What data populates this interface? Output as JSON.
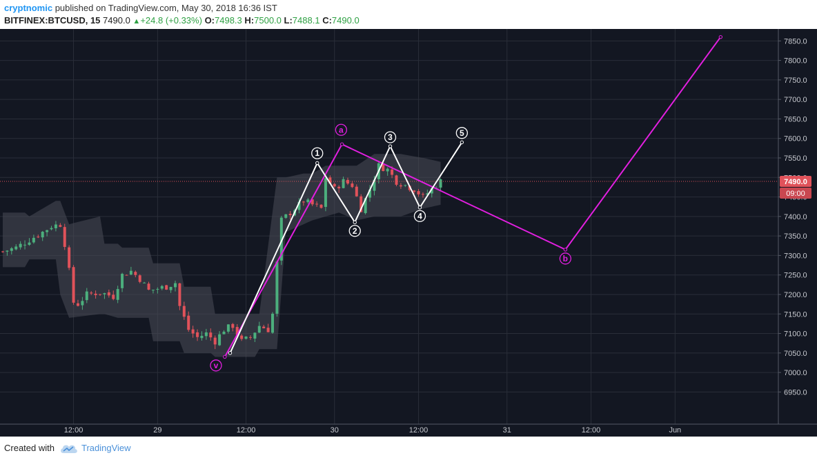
{
  "header": {
    "author": "cryptnomic",
    "published_text": "published on TradingView.com, May 30, 2018 16:36 IST",
    "symbol": "BITFINEX:BTCUSD, 15",
    "last": "7490.0",
    "change": "+24.8 (+0.33%)",
    "o_label": "O:",
    "o_value": "7498.3",
    "h_label": "H:",
    "h_value": "7500.0",
    "l_label": "L:",
    "l_value": "7488.1",
    "c_label": "C:",
    "c_value": "7490.0"
  },
  "footer": {
    "created_with": "Created with",
    "brand": "TradingView"
  },
  "colors": {
    "background": "#131722",
    "grid": "#2a2e39",
    "up": "#4caf7d",
    "down": "#e0525a",
    "band": "#4a4d57",
    "wave_white": "#ffffff",
    "wave_magenta": "#e21fe0",
    "price_line": "#e0525a",
    "axis_text": "#c7c9cf"
  },
  "chart_data": {
    "type": "candlestick",
    "ylim": [
      6910,
      7870
    ],
    "xlim": [
      0,
      176
    ],
    "y_ticks": [
      "6950.0",
      "7000.0",
      "7050.0",
      "7100.0",
      "7150.0",
      "7200.0",
      "7250.0",
      "7300.0",
      "7350.0",
      "7400.0",
      "7450.0",
      "7500.0",
      "7550.0",
      "7600.0",
      "7650.0",
      "7700.0",
      "7750.0",
      "7800.0",
      "7850.0"
    ],
    "x_ticks": [
      {
        "label": "12:00",
        "x": 16
      },
      {
        "label": "29",
        "x": 35
      },
      {
        "label": "12:00",
        "x": 55
      },
      {
        "label": "30",
        "x": 75
      },
      {
        "label": "12:00",
        "x": 94
      },
      {
        "label": "31",
        "x": 114
      },
      {
        "label": "12:00",
        "x": 133
      },
      {
        "label": "Jun",
        "x": 152
      }
    ],
    "current_price": {
      "value": 7490,
      "label": "7490.0",
      "countdown": "09:00"
    },
    "series_close_anchors": [
      [
        0,
        7310
      ],
      [
        3,
        7320
      ],
      [
        6,
        7340
      ],
      [
        9,
        7360
      ],
      [
        11,
        7375
      ],
      [
        13,
        7380
      ],
      [
        14,
        7330
      ],
      [
        15,
        7260
      ],
      [
        16,
        7180
      ],
      [
        17,
        7175
      ],
      [
        19,
        7200
      ],
      [
        22,
        7205
      ],
      [
        25,
        7195
      ],
      [
        27,
        7250
      ],
      [
        29,
        7260
      ],
      [
        31,
        7240
      ],
      [
        33,
        7210
      ],
      [
        35,
        7215
      ],
      [
        37,
        7220
      ],
      [
        39,
        7230
      ],
      [
        40,
        7170
      ],
      [
        42,
        7110
      ],
      [
        44,
        7090
      ],
      [
        46,
        7100
      ],
      [
        48,
        7080
      ],
      [
        50,
        7110
      ],
      [
        52,
        7120
      ],
      [
        54,
        7080
      ],
      [
        56,
        7090
      ],
      [
        58,
        7120
      ],
      [
        60,
        7110
      ],
      [
        61,
        7150
      ],
      [
        62,
        7280
      ],
      [
        63,
        7390
      ],
      [
        64,
        7400
      ],
      [
        66,
        7420
      ],
      [
        68,
        7440
      ],
      [
        70,
        7430
      ],
      [
        72,
        7420
      ],
      [
        73,
        7500
      ],
      [
        75,
        7470
      ],
      [
        77,
        7490
      ],
      [
        79,
        7480
      ],
      [
        80,
        7450
      ],
      [
        81,
        7420
      ],
      [
        83,
        7470
      ],
      [
        85,
        7530
      ],
      [
        87,
        7520
      ],
      [
        89,
        7490
      ],
      [
        91,
        7480
      ],
      [
        93,
        7470
      ],
      [
        95,
        7450
      ],
      [
        97,
        7470
      ],
      [
        99,
        7490
      ]
    ],
    "band_anchors": [
      [
        0,
        7410,
        7270
      ],
      [
        5,
        7410,
        7270
      ],
      [
        6,
        7400,
        7290
      ],
      [
        12,
        7440,
        7290
      ],
      [
        13,
        7440,
        7200
      ],
      [
        15,
        7380,
        7140
      ],
      [
        22,
        7400,
        7150
      ],
      [
        23,
        7330,
        7150
      ],
      [
        26,
        7330,
        7140
      ],
      [
        27,
        7320,
        7140
      ],
      [
        33,
        7320,
        7140
      ],
      [
        34,
        7280,
        7080
      ],
      [
        40,
        7280,
        7080
      ],
      [
        41,
        7220,
        7050
      ],
      [
        47,
        7220,
        7050
      ],
      [
        48,
        7150,
        7040
      ],
      [
        57,
        7150,
        7040
      ],
      [
        58,
        7150,
        7060
      ],
      [
        62,
        7500,
        7060
      ],
      [
        64,
        7500,
        7360
      ],
      [
        68,
        7510,
        7380
      ],
      [
        70,
        7510,
        7390
      ],
      [
        73,
        7530,
        7400
      ],
      [
        76,
        7530,
        7410
      ],
      [
        80,
        7530,
        7390
      ],
      [
        84,
        7560,
        7400
      ],
      [
        90,
        7560,
        7400
      ],
      [
        95,
        7550,
        7420
      ],
      [
        99,
        7540,
        7430
      ]
    ],
    "wave_v_a_b": {
      "points": [
        [
          50.2,
          7040
        ],
        [
          76.7,
          7585
        ],
        [
          127.2,
          7315
        ],
        [
          162.3,
          7860
        ]
      ],
      "labels": [
        {
          "text": "v",
          "x": 48.2,
          "y": 7018
        },
        {
          "text": "a",
          "x": 76.5,
          "y": 7622
        },
        {
          "text": "b",
          "x": 127.2,
          "y": 7292
        }
      ]
    },
    "wave_1_5": {
      "points": [
        [
          51.4,
          7050
        ],
        [
          71.1,
          7537
        ],
        [
          79.6,
          7385
        ],
        [
          87.6,
          7580
        ],
        [
          94.3,
          7423
        ],
        [
          103.8,
          7590
        ]
      ],
      "labels": [
        {
          "text": "1",
          "x": 71.1,
          "y": 7562
        },
        {
          "text": "2",
          "x": 79.6,
          "y": 7363
        },
        {
          "text": "3",
          "x": 87.6,
          "y": 7603
        },
        {
          "text": "4",
          "x": 94.3,
          "y": 7401
        },
        {
          "text": "5",
          "x": 103.8,
          "y": 7614
        }
      ]
    }
  }
}
